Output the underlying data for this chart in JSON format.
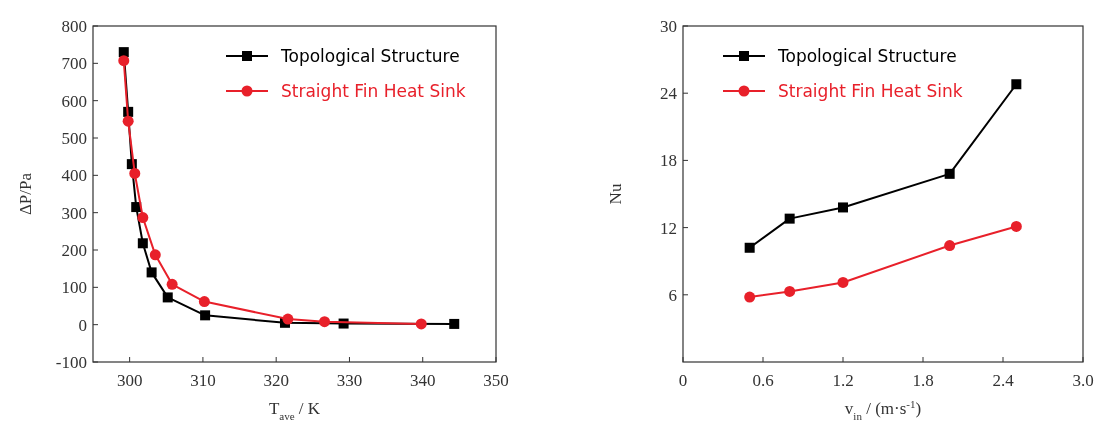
{
  "chart_data": [
    {
      "type": "line",
      "xlabel": "T$_{ave}$ / K",
      "ylabel": "ΔP/Pa",
      "xlim": [
        295,
        350
      ],
      "xticks": [
        300,
        310,
        320,
        330,
        340,
        350
      ],
      "ylim": [
        -100,
        800
      ],
      "yticks": [
        -100,
        0,
        100,
        200,
        300,
        400,
        500,
        600,
        700,
        800
      ],
      "legend": "top right",
      "series": [
        {
          "name": "Topological Structure",
          "color": "#000000",
          "marker": "square",
          "x": [
            299.2,
            299.8,
            300.3,
            300.9,
            301.8,
            303,
            305.2,
            310.3,
            321.2,
            329.2,
            344.3
          ],
          "values": [
            730,
            570,
            430,
            315,
            218,
            140,
            73,
            25,
            5,
            3,
            2
          ]
        },
        {
          "name": "Straight Fin Heat Sink",
          "color": "#e8202a",
          "marker": "circle",
          "x": [
            299.2,
            299.8,
            300.7,
            301.8,
            303.5,
            305.8,
            310.2,
            321.6,
            326.6,
            339.8
          ],
          "values": [
            707,
            545,
            405,
            287,
            187,
            108,
            62,
            15,
            8,
            2
          ]
        }
      ]
    },
    {
      "type": "line",
      "xlabel": "v$_{in}$ / (m·s$^{-1}$)",
      "ylabel": "Nu",
      "xlim": [
        0,
        3
      ],
      "xticks": [
        0,
        0.6,
        1.2,
        1.8,
        2.4,
        {
          "value": 3,
          "label": "3.0"
        }
      ],
      "ylim": [
        0,
        30
      ],
      "yticks": [
        6,
        12,
        18,
        24,
        30
      ],
      "legend": "top left",
      "series": [
        {
          "name": "Topological Structure",
          "color": "#000000",
          "marker": "square",
          "x": [
            0.5,
            0.8,
            1.2,
            2.0,
            2.5
          ],
          "values": [
            10.2,
            12.8,
            13.8,
            16.8,
            24.8
          ]
        },
        {
          "name": "Straight Fin Heat Sink",
          "color": "#e8202a",
          "marker": "circle",
          "x": [
            0.5,
            0.8,
            1.2,
            2.0,
            2.5
          ],
          "values": [
            5.8,
            6.3,
            7.1,
            10.4,
            12.1
          ]
        }
      ]
    }
  ]
}
